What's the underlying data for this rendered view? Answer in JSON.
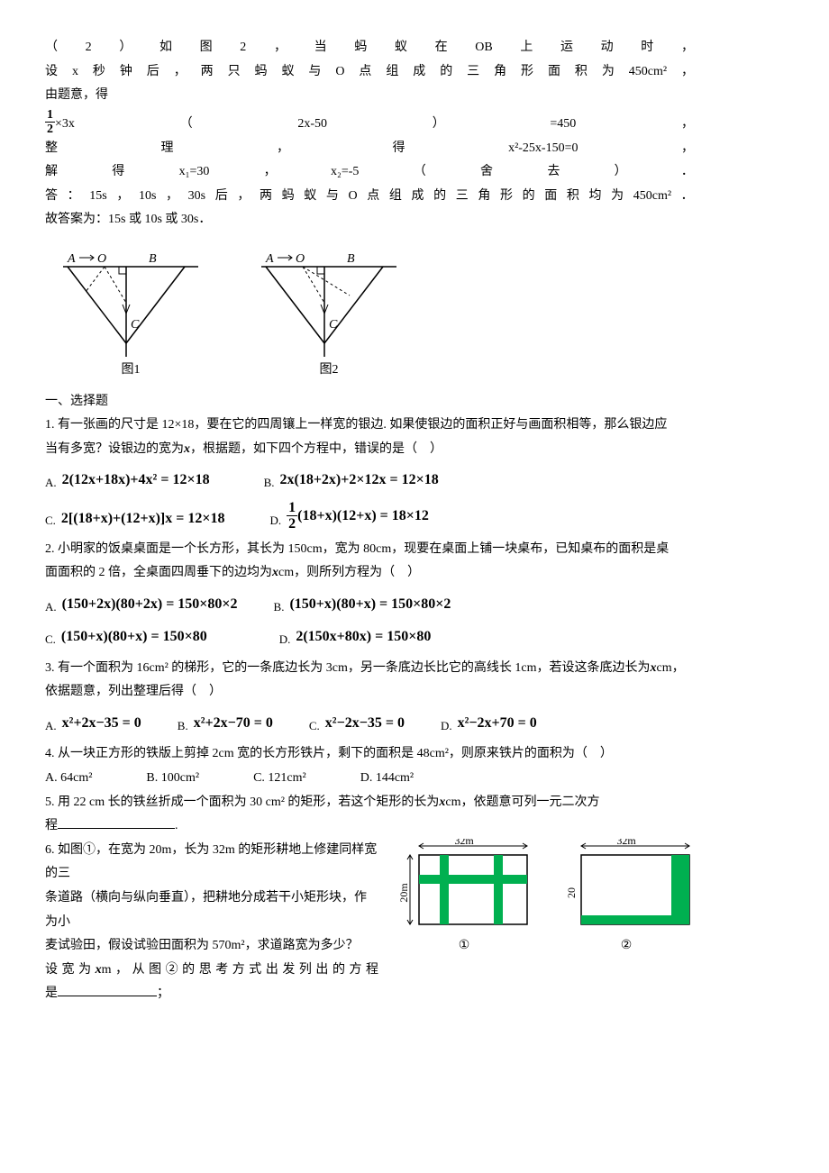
{
  "sol": {
    "l1_chars": [
      "（",
      "2",
      "）",
      "如",
      "图",
      "2",
      "，",
      "当",
      "蚂",
      "蚁",
      "在",
      "OB",
      "上",
      "运",
      "动",
      "时",
      "，"
    ],
    "l2_chars": [
      "设",
      "x",
      "秒",
      "钟",
      "后",
      "，",
      "两",
      "只",
      "蚂",
      "蚁",
      "与",
      "O",
      "点",
      "组",
      "成",
      "的",
      "三",
      "角",
      "形",
      "面",
      "积",
      "为",
      "450cm²",
      "，"
    ],
    "l3": "由题意，得",
    "frac_num": "1",
    "frac_den": "2",
    "l4_parts": [
      "×3x",
      "（",
      "2x-50",
      "）",
      "=450",
      "，"
    ],
    "l5_parts": [
      "整",
      "理",
      "，",
      "得",
      "x²-25x-150=0",
      "，"
    ],
    "l6_parts": [
      "解",
      "得",
      "x₁=30",
      "，",
      "x₂=-5",
      "（",
      "舍",
      "去",
      "）",
      "．"
    ],
    "l7_chars": [
      "答",
      "：",
      "15s",
      "，",
      "10s",
      "，",
      "30s",
      "后",
      "，",
      "两",
      "蚂",
      "蚁",
      "与",
      "O",
      "点",
      "组",
      "成",
      "的",
      "三",
      "角",
      "形",
      "的",
      "面",
      "积",
      "均",
      "为",
      "450cm²",
      "．"
    ],
    "l8": "故答案为：15s 或 10s 或 30s．"
  },
  "diag": {
    "A": "A",
    "O": "O",
    "B": "B",
    "C": "C",
    "cap1": "图1",
    "cap2": "图2"
  },
  "sec_heading": "一、选择题",
  "q1": {
    "stem1": "1. 有一张画的尺寸是 12×18，要在它的四周镶上一样宽的银边. 如果使银边的面积正好与画面积相等，那么银边应",
    "stem2": "当有多宽？设银边的宽为",
    "stem3": "，根据题，如下四个方程中，错误的是（　）",
    "A_lbl": "A.",
    "A_eq": "2(12x+18x)+4x² = 12×18",
    "B_lbl": "B.",
    "B_eq": "2x(18+2x)+2×12x = 12×18",
    "C_lbl": "C.",
    "C_eq": "2[(18+x)+(12+x)]x = 12×18",
    "D_lbl": "D.",
    "D_eq_tail": "(18+x)(12+x) = 18×12",
    "D_frac_num": "1",
    "D_frac_den": "2"
  },
  "q2": {
    "stem1": "2. 小明家的饭桌桌面是一个长方形，其长为 150cm，宽为 80cm，现要在桌面上铺一块桌布，已知桌布的面积是桌",
    "stem2": "面面积的 2 倍，全桌面四周垂下的边均为",
    "stem3": "cm，则所列方程为（　）",
    "A_lbl": "A.",
    "A_eq": "(150+2x)(80+2x) = 150×80×2",
    "B_lbl": "B.",
    "B_eq": "(150+x)(80+x) = 150×80×2",
    "C_lbl": "C.",
    "C_eq": "(150+x)(80+x) = 150×80",
    "D_lbl": "D.",
    "D_eq": "2(150x+80x) = 150×80"
  },
  "q3": {
    "stem1": "3. 有一个面积为 16cm² 的梯形，它的一条底边长为 3cm，另一条底边长比它的高线长 1cm，若设这条底边长为",
    "stem1b": "cm，",
    "stem2": "依据题意，列出整理后得（　）",
    "A_lbl": "A.",
    "A_eq": "x²+2x−35 = 0",
    "B_lbl": "B.",
    "B_eq": "x²+2x−70 = 0",
    "C_lbl": "C.",
    "C_eq": "x²−2x−35 = 0",
    "D_lbl": "D.",
    "D_eq": "x²−2x+70 = 0"
  },
  "q4": {
    "stem": "4. 从一块正方形的铁版上剪掉 2cm 宽的长方形铁片，剩下的面积是 48cm²，则原来铁片的面积为（　）",
    "A": "A. 64cm²",
    "B": "B. 100cm²",
    "C": "C. 121cm²",
    "D": "D. 144cm²"
  },
  "q5": {
    "pre": "5. 用 22 cm 长的铁丝折成一个面积为 30 cm² 的矩形，若这个矩形的长为",
    "post": "cm，依题意可列一元二次方",
    "line2_pre": "程",
    "line2_post": "."
  },
  "q6": {
    "l1": "6. 如图①，在宽为 20m，长为 32m 的矩形耕地上修建同样宽的三",
    "l2": "条道路（横向与纵向垂直），把耕地分成若干小矩形块，作为小",
    "l3": "麦试验田，假设试验田面积为 570m²，求道路宽为多少？",
    "l4_pre": "设宽为",
    "l4_post": "m，从图②的思考方式出发列出的方程",
    "l5_pre": "是",
    "l5_post": "；",
    "dim_w": "32m",
    "dim_h": "20m",
    "cap1": "①",
    "cap2": "②",
    "road_color": "#00b050",
    "border_color": "#000000"
  }
}
